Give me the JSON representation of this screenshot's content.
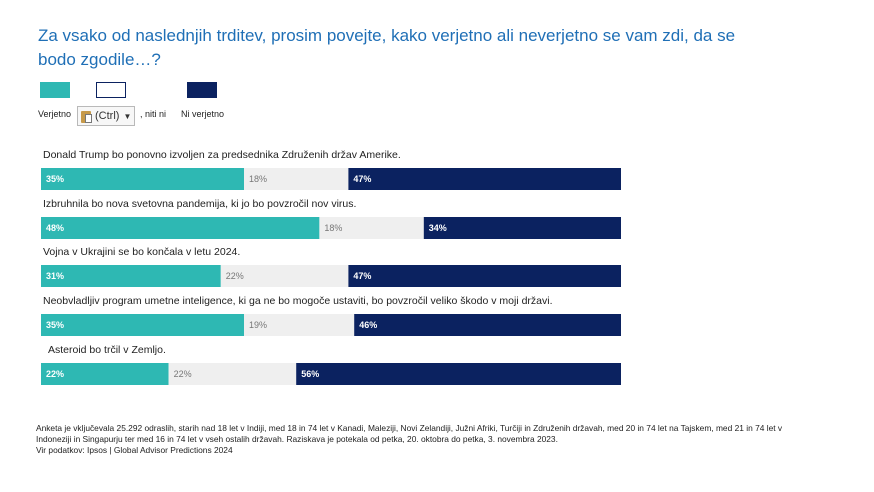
{
  "title": "Za vsako od naslednjih trditev, prosim povejte, kako verjetno ali neverjetno se vam zdi, da se bodo zgodile…?",
  "legend": [
    {
      "label": "Verjetno",
      "color": "#2eb8b3"
    },
    {
      "label": ", niti ni",
      "color": "#ffffff"
    },
    {
      "label": "Ni verjetno",
      "color": "#0b2260"
    }
  ],
  "paste_popup": {
    "label": "(Ctrl)"
  },
  "colors": {
    "likely": "#2eb8b3",
    "neutral": "#efefef",
    "unlikely": "#0b2260"
  },
  "chart_data": {
    "type": "bar",
    "stacked": true,
    "orientation": "horizontal",
    "categories": [
      "Donald Trump bo ponovno izvoljen za predsednika Združenih držav Amerike.",
      "Izbruhnila bo nova svetovna pandemija, ki jo bo povzročil nov virus.",
      "Vojna v Ukrajini se bo končala v letu 2024.",
      "Neobvladljiv program umetne inteligence, ki ga ne bo mogoče ustaviti, bo povzročil veliko škodo v moji državi.",
      "Asteroid bo trčil v Zemljo."
    ],
    "series": [
      {
        "name": "Verjetno",
        "values": [
          35,
          48,
          31,
          35,
          22
        ]
      },
      {
        "name": "Niti verjetno, niti ni verjetno",
        "values": [
          18,
          18,
          22,
          19,
          22
        ]
      },
      {
        "name": "Ni verjetno",
        "values": [
          47,
          34,
          47,
          46,
          56
        ]
      }
    ],
    "unit": "%"
  },
  "footnote": [
    "Anketa je vključevala 25.292 odraslih, starih nad 18 let v Indiji, med 18 in 74 let v Kanadi, Maleziji, Novi Zelandiji, Južni Afriki, Turčiji in Združenih državah, med 20 in 74 let na Tajskem, med 21 in 74 let v",
    "Indoneziji in Singapurju ter med 16 in 74 let v vseh ostalih državah. Raziskava je potekala od petka, 20. oktobra do petka, 3. novembra 2023.",
    "Vir podatkov: Ipsos | Global Advisor Predictions 2024"
  ]
}
